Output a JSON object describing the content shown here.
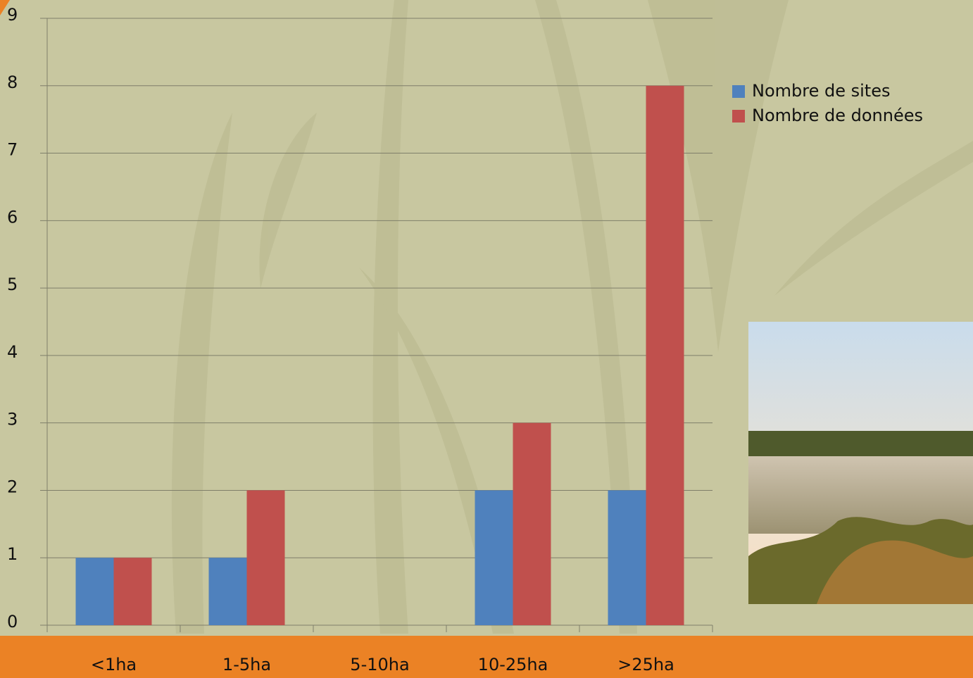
{
  "chart_data": {
    "type": "bar",
    "categories": [
      "<1ha",
      "1-5ha",
      "5-10ha",
      "10-25ha",
      ">25ha"
    ],
    "series": [
      {
        "name": "Nombre de sites",
        "color": "#4f81bd",
        "values": [
          1,
          1,
          0,
          2,
          2
        ]
      },
      {
        "name": "Nombre de données",
        "color": "#c0504d",
        "values": [
          1,
          2,
          0,
          3,
          8
        ]
      }
    ],
    "ylim": [
      0,
      9
    ],
    "yticks": [
      0,
      1,
      2,
      3,
      4,
      5,
      6,
      7,
      8,
      9
    ],
    "grid": true,
    "legend": "right"
  }
}
